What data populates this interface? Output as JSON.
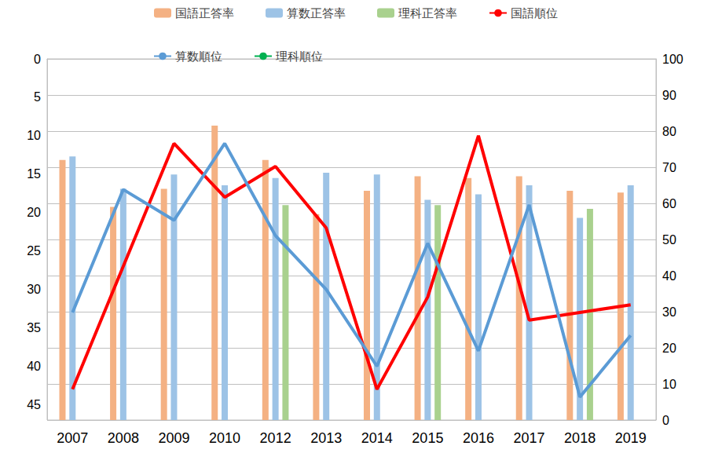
{
  "chart_data": {
    "type": "bar",
    "categories": [
      "2007",
      "2008",
      "2009",
      "2010",
      "2012",
      "2013",
      "2014",
      "2015",
      "2016",
      "2017",
      "2018",
      "2019"
    ],
    "ylim": [
      47,
      0
    ],
    "yticks": [
      0,
      5,
      10,
      15,
      20,
      25,
      30,
      35,
      40,
      45
    ],
    "y2lim": [
      0,
      100
    ],
    "y2ticks": [
      0,
      10,
      20,
      30,
      40,
      50,
      60,
      70,
      80,
      90,
      100
    ],
    "grid": true,
    "legend": "top",
    "series": [
      {
        "name": "国語正答率",
        "type": "bar",
        "axis": "y2",
        "color": "#f4b183",
        "values": [
          72,
          59,
          64,
          81.5,
          72,
          57,
          63.5,
          67.5,
          67,
          67.5,
          63.5,
          63
        ]
      },
      {
        "name": "算数正答率",
        "type": "bar",
        "axis": "y2",
        "color": "#9dc3e6",
        "values": [
          73,
          64,
          68,
          65,
          67,
          68.5,
          68,
          61,
          62.5,
          65,
          56,
          65
        ]
      },
      {
        "name": "理科正答率",
        "type": "bar",
        "axis": "y2",
        "color": "#a9d18e",
        "values": [
          null,
          null,
          null,
          null,
          59.5,
          null,
          null,
          59.5,
          null,
          null,
          58.5,
          null
        ]
      },
      {
        "name": "国語順位",
        "type": "line",
        "color": "#ff0000",
        "values": [
          43,
          27,
          11,
          18,
          14,
          22,
          43,
          31,
          10,
          34,
          33,
          32
        ]
      },
      {
        "name": "算数順位",
        "type": "line",
        "color": "#5b9bd5",
        "values": [
          33,
          17,
          21,
          11,
          23,
          30,
          40,
          24,
          38,
          19,
          44,
          36
        ]
      },
      {
        "name": "理科順位",
        "type": "line",
        "color": "#00b050",
        "values": [
          null,
          null,
          null,
          null,
          null,
          null,
          null,
          null,
          null,
          null,
          null,
          null
        ]
      }
    ]
  }
}
